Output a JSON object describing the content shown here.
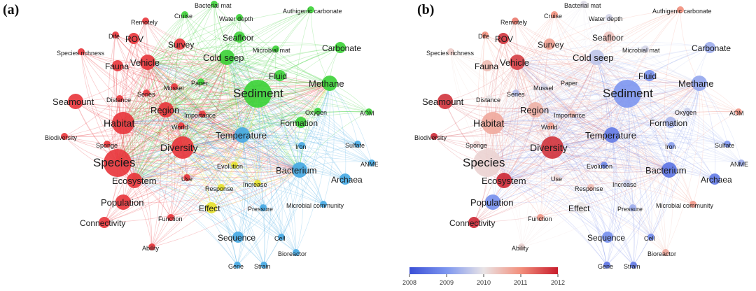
{
  "panels": [
    {
      "label": "(a)",
      "color_mode": "cluster"
    },
    {
      "label": "(b)",
      "color_mode": "year"
    }
  ],
  "colorbar": {
    "ticks": [
      "2008",
      "2009",
      "2010",
      "2011",
      "2012"
    ],
    "colors": [
      "#3a4fd6",
      "#7d96ef",
      "#e9e4e6",
      "#f28f7c",
      "#c81c2c"
    ]
  },
  "cluster_colors": {
    "red": "#e8343a",
    "green": "#3bd136",
    "blue": "#45a9e3",
    "yellow": "#e6e12c"
  },
  "nodes": [
    {
      "id": "species",
      "label": "Species",
      "cluster": "red",
      "weight": 5,
      "year": 2010.2
    },
    {
      "id": "habitat",
      "label": "Habitat",
      "cluster": "red",
      "weight": 4,
      "year": 2010.7
    },
    {
      "id": "diversity",
      "label": "Diversity",
      "cluster": "red",
      "weight": 4,
      "year": 2011.8
    },
    {
      "id": "ecosystem",
      "label": "Ecosystem",
      "cluster": "red",
      "weight": 3,
      "year": 2011.9
    },
    {
      "id": "population",
      "label": "Population",
      "cluster": "red",
      "weight": 3,
      "year": 2008.9
    },
    {
      "id": "seamount",
      "label": "Seamount",
      "cluster": "red",
      "weight": 3,
      "year": 2011.8
    },
    {
      "id": "region",
      "label": "Region",
      "cluster": "red",
      "weight": 3,
      "year": 2010.6
    },
    {
      "id": "vehicle",
      "label": "Vehicle",
      "cluster": "red",
      "weight": 3,
      "year": 2011.7
    },
    {
      "id": "fauna",
      "label": "Fauna",
      "cluster": "red",
      "weight": 2,
      "year": 2010.5
    },
    {
      "id": "connectivity",
      "label": "Connectivity",
      "cluster": "red",
      "weight": 2,
      "year": 2011.9
    },
    {
      "id": "biodiversity",
      "label": "Biodiversity",
      "cluster": "red",
      "weight": 1,
      "year": 2011.9
    },
    {
      "id": "sponge",
      "label": "Sponge",
      "cluster": "red",
      "weight": 1,
      "year": 2010.2
    },
    {
      "id": "distance",
      "label": "Distance",
      "cluster": "red",
      "weight": 1,
      "year": 2010.0
    },
    {
      "id": "series",
      "label": "Series",
      "cluster": "red",
      "weight": 1,
      "year": 2009.5
    },
    {
      "id": "mussel",
      "label": "Mussel",
      "cluster": "red",
      "weight": 1,
      "year": 2009.8
    },
    {
      "id": "survey",
      "label": "Survey",
      "cluster": "red",
      "weight": 2,
      "year": 2010.8
    },
    {
      "id": "rov",
      "label": "ROV",
      "cluster": "red",
      "weight": 2,
      "year": 2011.8
    },
    {
      "id": "dife",
      "label": "Dife",
      "cluster": "red",
      "weight": 1,
      "year": 2011.0
    },
    {
      "id": "remotely",
      "label": "Remotely",
      "cluster": "red",
      "weight": 1,
      "year": 2011.2
    },
    {
      "id": "speciesrichness",
      "label": "Species richness",
      "cluster": "red",
      "weight": 1,
      "year": 2010.3
    },
    {
      "id": "importance",
      "label": "Importance",
      "cluster": "red",
      "weight": 1,
      "year": 2010.5
    },
    {
      "id": "world",
      "label": "World",
      "cluster": "red",
      "weight": 1,
      "year": 2010.8
    },
    {
      "id": "use",
      "label": "Use",
      "cluster": "red",
      "weight": 1,
      "year": 2010.2
    },
    {
      "id": "function",
      "label": "Function",
      "cluster": "red",
      "weight": 1,
      "year": 2010.9
    },
    {
      "id": "ability",
      "label": "Ability",
      "cluster": "red",
      "weight": 1,
      "year": 2010.2
    },
    {
      "id": "sediment",
      "label": "Sediment",
      "cluster": "green",
      "weight": 5,
      "year": 2009.0
    },
    {
      "id": "coldseep",
      "label": "Cold seep",
      "cluster": "green",
      "weight": 3,
      "year": 2009.6
    },
    {
      "id": "methane",
      "label": "Methane",
      "cluster": "green",
      "weight": 3,
      "year": 2009.2
    },
    {
      "id": "fluid",
      "label": "Fluid",
      "cluster": "green",
      "weight": 2,
      "year": 2008.9
    },
    {
      "id": "seafloor",
      "label": "Seafloor",
      "cluster": "green",
      "weight": 2,
      "year": 2010.4
    },
    {
      "id": "waterdepth",
      "label": "Water depth",
      "cluster": "green",
      "weight": 1,
      "year": 2009.8
    },
    {
      "id": "cruise",
      "label": "Cruise",
      "cluster": "green",
      "weight": 1,
      "year": 2011.0
    },
    {
      "id": "bacterialmat",
      "label": "Bacterial mat",
      "cluster": "green",
      "weight": 1,
      "year": 2009.9
    },
    {
      "id": "authigenic",
      "label": "Authigenic carbonate",
      "cluster": "green",
      "weight": 1,
      "year": 2011.0
    },
    {
      "id": "microbialmat",
      "label": "Microbial mat",
      "cluster": "green",
      "weight": 1,
      "year": 2009.8
    },
    {
      "id": "carbonate",
      "label": "Carbonate",
      "cluster": "green",
      "weight": 2,
      "year": 2009.3
    },
    {
      "id": "paper",
      "label": "Paper",
      "cluster": "green",
      "weight": 1,
      "year": 2010.0
    },
    {
      "id": "formation",
      "label": "Formation",
      "cluster": "green",
      "weight": 2,
      "year": 2009.4
    },
    {
      "id": "oxygen",
      "label": "Oxygen",
      "cluster": "green",
      "weight": 1,
      "year": 2009.7
    },
    {
      "id": "aom",
      "label": "AOM",
      "cluster": "green",
      "weight": 1,
      "year": 2010.9
    },
    {
      "id": "temperature",
      "label": "Temperature",
      "cluster": "blue",
      "weight": 3,
      "year": 2008.6
    },
    {
      "id": "bacterium",
      "label": "Bacterium",
      "cluster": "blue",
      "weight": 3,
      "year": 2008.5
    },
    {
      "id": "archaea",
      "label": "Archaea",
      "cluster": "blue",
      "weight": 2,
      "year": 2008.6
    },
    {
      "id": "sulfate",
      "label": "Sulfate",
      "cluster": "blue",
      "weight": 1,
      "year": 2009.0
    },
    {
      "id": "anme",
      "label": "ANME",
      "cluster": "blue",
      "weight": 1,
      "year": 2009.3
    },
    {
      "id": "iron",
      "label": "Iron",
      "cluster": "blue",
      "weight": 1,
      "year": 2009.1
    },
    {
      "id": "microbialcommunity",
      "label": "Microbial community",
      "cluster": "blue",
      "weight": 1,
      "year": 2010.9
    },
    {
      "id": "pressure",
      "label": "Pressure",
      "cluster": "blue",
      "weight": 1,
      "year": 2009.3
    },
    {
      "id": "sequence",
      "label": "Sequence",
      "cluster": "blue",
      "weight": 2,
      "year": 2008.9
    },
    {
      "id": "cell",
      "label": "Cell",
      "cluster": "blue",
      "weight": 1,
      "year": 2008.8
    },
    {
      "id": "bioreactor",
      "label": "Bioreactor",
      "cluster": "blue",
      "weight": 1,
      "year": 2010.7
    },
    {
      "id": "gene",
      "label": "Gene",
      "cluster": "blue",
      "weight": 1,
      "year": 2008.5
    },
    {
      "id": "strain",
      "label": "Strain",
      "cluster": "blue",
      "weight": 1,
      "year": 2008.6
    },
    {
      "id": "evolution",
      "label": "Evolution",
      "cluster": "yellow",
      "weight": 1,
      "year": 2008.8
    },
    {
      "id": "response",
      "label": "Response",
      "cluster": "yellow",
      "weight": 1,
      "year": 2010.5
    },
    {
      "id": "increase",
      "label": "Increase",
      "cluster": "yellow",
      "weight": 1,
      "year": 2009.7
    },
    {
      "id": "effect",
      "label": "Effect",
      "cluster": "yellow",
      "weight": 2,
      "year": 2010.0
    }
  ]
}
